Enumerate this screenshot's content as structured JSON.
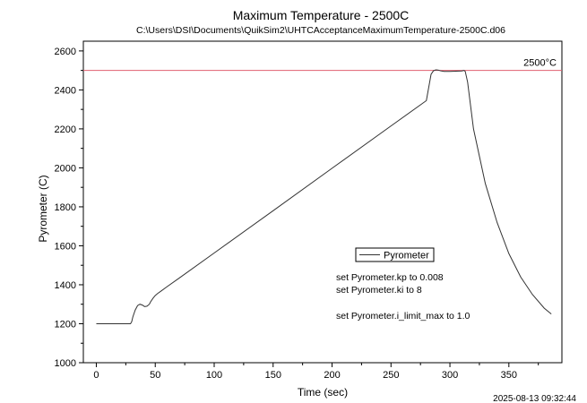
{
  "chart_data": {
    "type": "line",
    "title": "Maximum Temperature - 2500C",
    "subtitle": "C:\\Users\\DSI\\Documents\\QuikSim2\\UHTCAcceptanceMaximumTemperature-2500C.d06",
    "xlabel": "Time (sec)",
    "ylabel": "Pyrometer (C)",
    "xlim": [
      -11,
      395
    ],
    "ylim": [
      1000,
      2650
    ],
    "xticks": [
      0,
      50,
      100,
      150,
      200,
      250,
      300,
      350
    ],
    "yticks": [
      1000,
      1200,
      1400,
      1600,
      1800,
      2000,
      2200,
      2400,
      2600
    ],
    "grid": false,
    "legend_position": "center-right",
    "series": [
      {
        "name": "Pyrometer",
        "color": "#333333",
        "x": [
          0,
          10,
          20,
          29,
          30,
          31,
          33,
          35,
          37,
          39,
          41,
          43,
          45,
          46,
          48,
          50,
          52,
          55,
          60,
          70,
          100,
          150,
          200,
          250,
          280,
          284,
          286,
          288,
          290,
          292,
          295,
          300,
          305,
          310,
          312,
          313,
          315,
          320,
          330,
          340,
          350,
          360,
          370,
          380,
          386
        ],
        "y": [
          1200,
          1200,
          1200,
          1200,
          1210,
          1235,
          1270,
          1293,
          1300,
          1296,
          1288,
          1290,
          1300,
          1312,
          1330,
          1345,
          1355,
          1368,
          1390,
          1433,
          1563,
          1780,
          1998,
          2215,
          2345,
          2480,
          2498,
          2503,
          2502,
          2498,
          2495,
          2495,
          2496,
          2497,
          2500,
          2495,
          2440,
          2200,
          1920,
          1720,
          1560,
          1440,
          1350,
          1280,
          1250
        ]
      }
    ],
    "reference_line": {
      "y": 2500,
      "label": "2500°C",
      "color": "#e06070"
    },
    "annotations": [
      "set Pyrometer.kp to 0.008",
      "set Pyrometer.ki to 8",
      "set Pyrometer.i_limit_max to 1.0"
    ]
  },
  "timestamp": "2025-08-13 09:32:44"
}
